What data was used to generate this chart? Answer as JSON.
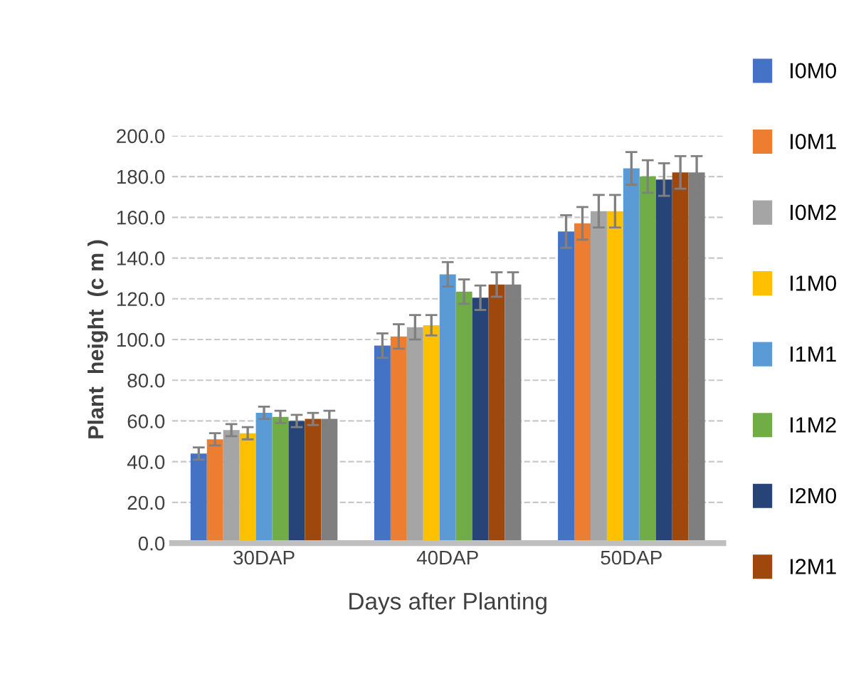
{
  "chart_data": {
    "type": "bar",
    "xlabel": "Days after Planting",
    "ylabel": "Plant  height  (c m )",
    "categories": [
      "30DAP",
      "40DAP",
      "50DAP"
    ],
    "series": [
      {
        "name": "I0M0",
        "color": "#4472c4",
        "values": [
          44,
          97,
          153
        ],
        "errors": [
          3,
          6,
          8
        ]
      },
      {
        "name": "I0M1",
        "color": "#ed7d31",
        "values": [
          51,
          101.5,
          157
        ],
        "errors": [
          3,
          6,
          8
        ]
      },
      {
        "name": "I0M2",
        "color": "#a5a5a5",
        "values": [
          55.5,
          106,
          163
        ],
        "errors": [
          3,
          6,
          8
        ]
      },
      {
        "name": "I1M0",
        "color": "#ffc000",
        "values": [
          54,
          107,
          163
        ],
        "errors": [
          3,
          5,
          8
        ]
      },
      {
        "name": "I1M1",
        "color": "#5b9bd5",
        "values": [
          64,
          132,
          184
        ],
        "errors": [
          3,
          6,
          8
        ]
      },
      {
        "name": "I1M2",
        "color": "#70ad47",
        "values": [
          62,
          123.5,
          180
        ],
        "errors": [
          3,
          6,
          8
        ]
      },
      {
        "name": "I2M0",
        "color": "#264478",
        "values": [
          60,
          120.5,
          178.5
        ],
        "errors": [
          3,
          6,
          8
        ]
      },
      {
        "name": "I2M1",
        "color": "#9e480e",
        "values": [
          61,
          127,
          182
        ],
        "errors": [
          3,
          6,
          8
        ]
      },
      {
        "color": "#7f7f7f",
        "values": [
          61,
          127,
          182
        ],
        "errors": [
          4,
          6,
          8
        ]
      }
    ],
    "ylim": [
      0,
      200
    ],
    "yticks": [
      {
        "value": 0,
        "label": "0.0"
      },
      {
        "value": 20,
        "label": "20.0"
      },
      {
        "value": 40,
        "label": "40.0"
      },
      {
        "value": 60,
        "label": "60.0"
      },
      {
        "value": 80,
        "label": "80.0"
      },
      {
        "value": 100,
        "label": "100.0"
      },
      {
        "value": 120,
        "label": "120.0"
      },
      {
        "value": 140,
        "label": "140.0"
      },
      {
        "value": 160,
        "label": "160.0"
      },
      {
        "value": 180,
        "label": "180.0"
      },
      {
        "value": 200,
        "label": "200.0"
      }
    ],
    "grid": "y",
    "legend": "right"
  }
}
